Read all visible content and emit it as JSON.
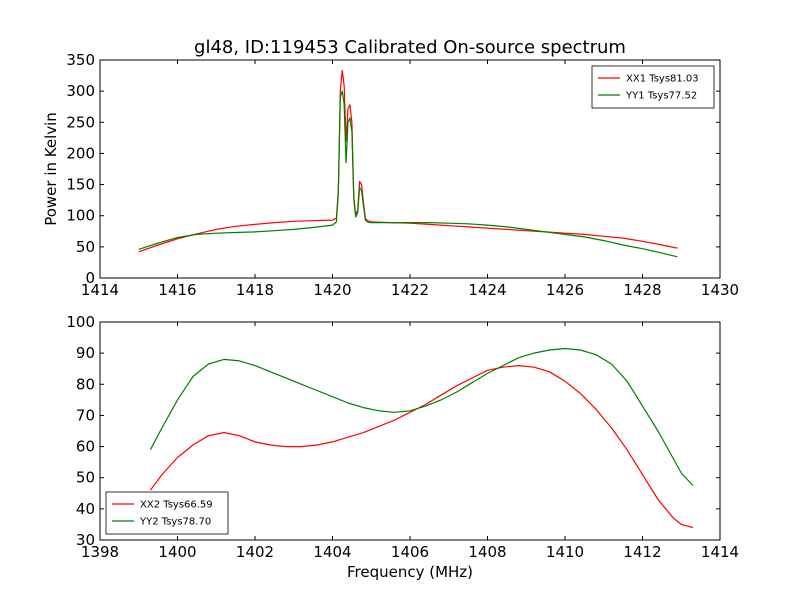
{
  "title": "gl48, ID:119453 Calibrated On-source spectrum",
  "colors": {
    "red": "#ff0000",
    "green": "#007f00"
  },
  "chart_data": [
    {
      "type": "line",
      "ylabel": "Power in Kelvin",
      "xlabel": "",
      "xlim": [
        1414,
        1430
      ],
      "ylim": [
        0,
        350
      ],
      "grid": false,
      "legend_position": "top-right",
      "xticks": [
        "1414",
        "1416",
        "1418",
        "1420",
        "1422",
        "1424",
        "1426",
        "1428",
        "1430"
      ],
      "yticks": [
        "0",
        "50",
        "100",
        "150",
        "200",
        "250",
        "300",
        "350"
      ],
      "series": [
        {
          "name": "XX1 Tsys81.03",
          "color": "#ff0000",
          "x": [
            1415.0,
            1415.5,
            1416.0,
            1416.5,
            1417.0,
            1417.5,
            1418.0,
            1418.5,
            1419.0,
            1419.5,
            1420.0,
            1420.1,
            1420.15,
            1420.2,
            1420.25,
            1420.3,
            1420.35,
            1420.4,
            1420.45,
            1420.5,
            1420.55,
            1420.6,
            1420.65,
            1420.7,
            1420.75,
            1420.8,
            1420.85,
            1420.9,
            1421.0,
            1421.5,
            1422.0,
            1422.5,
            1423.0,
            1423.5,
            1424.0,
            1424.5,
            1425.0,
            1425.5,
            1426.0,
            1426.5,
            1427.0,
            1427.5,
            1428.0,
            1428.5,
            1428.9
          ],
          "y": [
            42,
            53,
            63,
            71,
            78,
            83,
            86,
            89,
            91,
            92,
            93,
            96,
            140,
            300,
            333,
            310,
            220,
            272,
            278,
            250,
            130,
            100,
            110,
            155,
            150,
            120,
            96,
            92,
            90,
            89,
            88,
            86,
            84,
            82,
            80,
            78,
            76,
            74,
            72,
            70,
            67,
            64,
            59,
            53,
            48
          ]
        },
        {
          "name": "YY1 Tsys77.52",
          "color": "#007f00",
          "x": [
            1415.0,
            1415.5,
            1416.0,
            1416.5,
            1417.0,
            1417.5,
            1418.0,
            1418.5,
            1419.0,
            1419.5,
            1420.0,
            1420.1,
            1420.15,
            1420.2,
            1420.25,
            1420.3,
            1420.35,
            1420.4,
            1420.45,
            1420.5,
            1420.55,
            1420.6,
            1420.65,
            1420.7,
            1420.75,
            1420.8,
            1420.85,
            1420.9,
            1421.0,
            1421.5,
            1422.0,
            1422.5,
            1423.0,
            1423.5,
            1424.0,
            1424.5,
            1425.0,
            1425.5,
            1426.0,
            1426.5,
            1427.0,
            1427.5,
            1428.0,
            1428.5,
            1428.9
          ],
          "y": [
            46,
            56,
            65,
            70,
            72,
            73,
            74,
            76,
            78,
            81,
            85,
            90,
            135,
            290,
            300,
            280,
            185,
            250,
            257,
            235,
            125,
            98,
            105,
            145,
            140,
            115,
            93,
            90,
            89,
            89,
            89,
            89,
            88,
            87,
            85,
            82,
            78,
            74,
            70,
            66,
            60,
            53,
            47,
            40,
            34
          ]
        }
      ]
    },
    {
      "type": "line",
      "ylabel": "",
      "xlabel": "Frequency (MHz)",
      "xlim": [
        1398,
        1414
      ],
      "ylim": [
        30,
        100
      ],
      "grid": false,
      "legend_position": "bottom-left",
      "xticks": [
        "1398",
        "1400",
        "1402",
        "1404",
        "1406",
        "1408",
        "1410",
        "1412",
        "1414"
      ],
      "yticks": [
        "30",
        "40",
        "50",
        "60",
        "70",
        "80",
        "90",
        "100"
      ],
      "series": [
        {
          "name": "XX2 Tsys66.59",
          "color": "#ff0000",
          "x": [
            1399.3,
            1399.6,
            1400.0,
            1400.4,
            1400.8,
            1401.2,
            1401.6,
            1402.0,
            1402.4,
            1402.8,
            1403.2,
            1403.6,
            1404.0,
            1404.4,
            1404.8,
            1405.2,
            1405.6,
            1406.0,
            1406.4,
            1406.8,
            1407.2,
            1407.6,
            1408.0,
            1408.4,
            1408.8,
            1409.2,
            1409.6,
            1410.0,
            1410.4,
            1410.8,
            1411.2,
            1411.6,
            1412.0,
            1412.4,
            1412.8,
            1413.0,
            1413.3
          ],
          "y": [
            46,
            51,
            56.5,
            60.5,
            63.5,
            64.5,
            63.5,
            61.5,
            60.5,
            60,
            60,
            60.5,
            61.5,
            63,
            64.5,
            66.5,
            68.5,
            71,
            73.5,
            76.5,
            79.5,
            82,
            84.5,
            85.5,
            86,
            85.5,
            84,
            81,
            77,
            72,
            66,
            59,
            51,
            43,
            37,
            35,
            34
          ]
        },
        {
          "name": "YY2 Tsys78.70",
          "color": "#007f00",
          "x": [
            1399.3,
            1399.6,
            1400.0,
            1400.4,
            1400.8,
            1401.2,
            1401.6,
            1402.0,
            1402.4,
            1402.8,
            1403.2,
            1403.6,
            1404.0,
            1404.4,
            1404.8,
            1405.2,
            1405.6,
            1406.0,
            1406.4,
            1406.8,
            1407.2,
            1407.6,
            1408.0,
            1408.4,
            1408.8,
            1409.2,
            1409.6,
            1410.0,
            1410.4,
            1410.8,
            1411.2,
            1411.6,
            1412.0,
            1412.4,
            1412.8,
            1413.0,
            1413.3
          ],
          "y": [
            59,
            66,
            75,
            82.5,
            86.5,
            88,
            87.5,
            86,
            84,
            82,
            80,
            78,
            76,
            74,
            72.5,
            71.5,
            71,
            71.5,
            73,
            75,
            77.5,
            80.5,
            83.5,
            86,
            88.5,
            90,
            91,
            91.5,
            91,
            89.5,
            86.5,
            81,
            73,
            65,
            56,
            51.5,
            47.5
          ]
        }
      ]
    }
  ]
}
